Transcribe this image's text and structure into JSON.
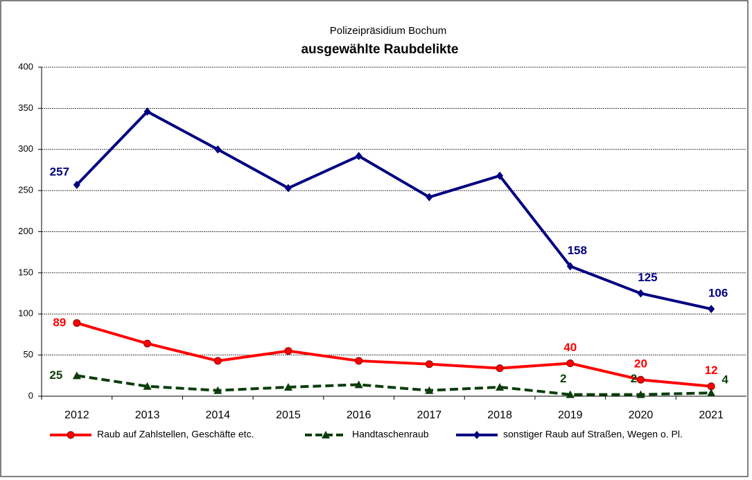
{
  "chart_data": {
    "type": "line",
    "title": "Polizeipräsidium Bochum",
    "subtitle": "ausgewählte  Raubdelikte",
    "categories": [
      "2012",
      "2013",
      "2014",
      "2015",
      "2016",
      "2017",
      "2018",
      "2019",
      "2020",
      "2021"
    ],
    "series": [
      {
        "name": "Raub auf Zahlstellen, Geschäfte etc.",
        "color": "#ff0000",
        "values": [
          89,
          64,
          43,
          55,
          43,
          39,
          34,
          40,
          20,
          12
        ]
      },
      {
        "name": "Handtaschenraub",
        "color": "#0b3d0b",
        "values": [
          25,
          12,
          7,
          11,
          14,
          7,
          11,
          2,
          2,
          4
        ]
      },
      {
        "name": "sonstiger Raub auf Straßen, Wegen o. Pl.",
        "color": "#000080",
        "values": [
          257,
          346,
          300,
          253,
          292,
          242,
          268,
          158,
          125,
          106
        ]
      }
    ],
    "ylim": [
      0,
      400
    ],
    "yticks": [
      0,
      50,
      100,
      150,
      200,
      250,
      300,
      350,
      400
    ],
    "grid": true,
    "legend": "bottom"
  }
}
